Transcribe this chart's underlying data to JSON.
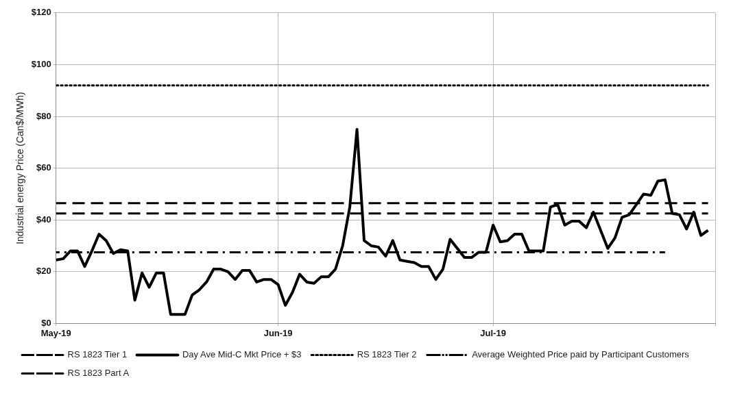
{
  "chart_data": {
    "type": "line",
    "ylabel": "Industrial energy Price (Can$/MWh)",
    "xlim": [
      "2019-05-01",
      "2019-08-01"
    ],
    "xticks": [
      {
        "value": "2019-05-01",
        "label": "May-19"
      },
      {
        "value": "2019-06-01",
        "label": "Jun-19"
      },
      {
        "value": "2019-07-01",
        "label": "Jul-19"
      },
      {
        "value": "2019-08-01",
        "label": null
      }
    ],
    "ylim": [
      0,
      120
    ],
    "yticks": [
      {
        "value": 0,
        "label": "$0"
      },
      {
        "value": 20,
        "label": "$20"
      },
      {
        "value": 40,
        "label": "$40"
      },
      {
        "value": 60,
        "label": "$60"
      },
      {
        "value": 80,
        "label": "$80"
      },
      {
        "value": 100,
        "label": "$100"
      },
      {
        "value": 120,
        "label": "$120"
      }
    ],
    "grid": true,
    "legend": "bottom",
    "marker": "none",
    "series": [
      {
        "name": "RS 1823 Tier 1",
        "color": "#000000",
        "line_style": "dashed",
        "x": [
          "2019-05-01",
          "2019-07-31"
        ],
        "values": [
          42.5,
          42.5
        ]
      },
      {
        "name": "Day Ave Mid-C Mkt Price + $3",
        "color": "#000000",
        "line_style": "solid",
        "x": [
          "2019-05-01",
          "2019-05-02",
          "2019-05-03",
          "2019-05-04",
          "2019-05-05",
          "2019-05-06",
          "2019-05-07",
          "2019-05-08",
          "2019-05-09",
          "2019-05-10",
          "2019-05-11",
          "2019-05-12",
          "2019-05-13",
          "2019-05-14",
          "2019-05-15",
          "2019-05-16",
          "2019-05-17",
          "2019-05-18",
          "2019-05-19",
          "2019-05-20",
          "2019-05-21",
          "2019-05-22",
          "2019-05-23",
          "2019-05-24",
          "2019-05-25",
          "2019-05-26",
          "2019-05-27",
          "2019-05-28",
          "2019-05-29",
          "2019-05-30",
          "2019-05-31",
          "2019-06-01",
          "2019-06-02",
          "2019-06-03",
          "2019-06-04",
          "2019-06-05",
          "2019-06-06",
          "2019-06-07",
          "2019-06-08",
          "2019-06-09",
          "2019-06-10",
          "2019-06-11",
          "2019-06-12",
          "2019-06-13",
          "2019-06-14",
          "2019-06-15",
          "2019-06-16",
          "2019-06-17",
          "2019-06-18",
          "2019-06-19",
          "2019-06-20",
          "2019-06-21",
          "2019-06-22",
          "2019-06-23",
          "2019-06-24",
          "2019-06-25",
          "2019-06-26",
          "2019-06-27",
          "2019-06-28",
          "2019-06-29",
          "2019-06-30",
          "2019-07-01",
          "2019-07-02",
          "2019-07-03",
          "2019-07-04",
          "2019-07-05",
          "2019-07-06",
          "2019-07-07",
          "2019-07-08",
          "2019-07-09",
          "2019-07-10",
          "2019-07-11",
          "2019-07-12",
          "2019-07-13",
          "2019-07-14",
          "2019-07-15",
          "2019-07-16",
          "2019-07-17",
          "2019-07-18",
          "2019-07-19",
          "2019-07-20",
          "2019-07-21",
          "2019-07-22",
          "2019-07-23",
          "2019-07-24",
          "2019-07-25",
          "2019-07-26",
          "2019-07-27",
          "2019-07-28",
          "2019-07-29",
          "2019-07-30",
          "2019-07-31"
        ],
        "values": [
          24.5,
          25,
          28,
          28,
          22,
          28,
          34.5,
          32,
          27,
          28.5,
          28,
          9,
          19.5,
          14,
          19.5,
          19.5,
          3.5,
          3.5,
          3.5,
          11,
          13,
          16,
          21,
          21,
          20,
          17,
          20.5,
          20.5,
          16,
          17,
          17,
          15,
          7,
          12,
          19,
          16,
          15.5,
          18,
          18,
          21,
          30,
          45,
          75,
          32,
          30,
          29.5,
          26,
          32,
          24.5,
          24,
          23.5,
          22,
          22,
          17,
          21,
          32.5,
          29,
          25.5,
          25.5,
          27.5,
          27.5,
          38,
          31.5,
          32,
          34.5,
          34.5,
          28,
          28,
          28,
          45,
          46,
          38,
          39.5,
          39.5,
          37,
          43,
          36,
          29,
          33,
          41,
          42,
          46,
          50,
          49.5,
          55,
          55.5,
          42.5,
          42,
          36.5,
          43,
          34,
          36
        ]
      },
      {
        "name": "RS 1823 Tier 2",
        "color": "#000000",
        "line_style": "dotted",
        "x": [
          "2019-05-01",
          "2019-07-31"
        ],
        "values": [
          92,
          92
        ]
      },
      {
        "name": "Average Weighted Price paid by Participant Customers",
        "color": "#000000",
        "line_style": "dashdot",
        "x": [
          "2019-05-01",
          "2019-07-25"
        ],
        "values": [
          27.5,
          27.5
        ]
      },
      {
        "name": "RS 1823 Part A",
        "color": "#000000",
        "line_style": "dashed",
        "x": [
          "2019-05-01",
          "2019-07-31"
        ],
        "values": [
          46.5,
          46.5
        ]
      }
    ]
  }
}
